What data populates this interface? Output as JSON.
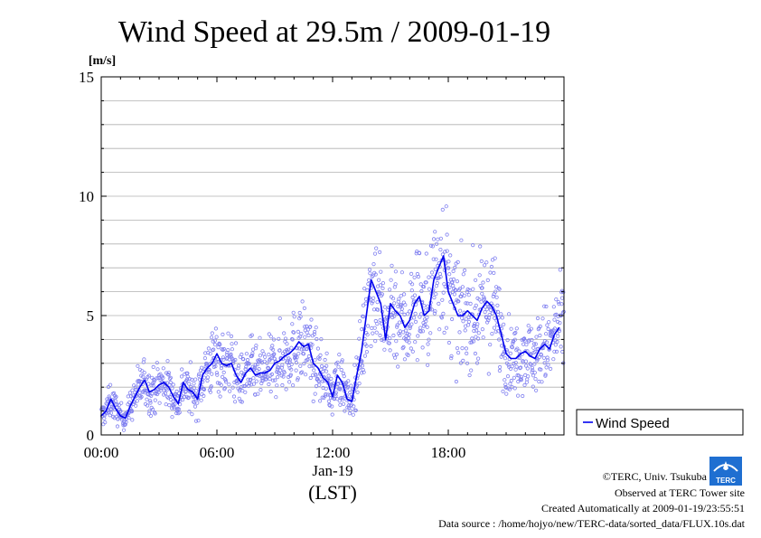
{
  "chart_data": {
    "type": "scatter",
    "title": "Wind Speed at 29.5m / 2009-01-19",
    "ylabel": "[m/s]",
    "xlabel": "(LST)",
    "date_label": "Jan-19",
    "ylim": [
      0,
      15
    ],
    "xlim_hours": [
      0,
      24
    ],
    "yticks": [
      0,
      5,
      10,
      15
    ],
    "ygrid": [
      1,
      2,
      3,
      4,
      5,
      6,
      7,
      8,
      9,
      10,
      11,
      12,
      13,
      14,
      15
    ],
    "xticks": [
      {
        "hour": 0,
        "label": "00:00"
      },
      {
        "hour": 6,
        "label": "06:00"
      },
      {
        "hour": 12,
        "label": "12:00"
      },
      {
        "hour": 18,
        "label": "18:00"
      }
    ],
    "grid": true,
    "legend_position": "right-bottom-outside",
    "series": [
      {
        "name": "Wind Speed",
        "color": "#0000ee",
        "scatter_color": "#8080f0",
        "line_hours": [
          0.0,
          0.25,
          0.5,
          0.75,
          1.0,
          1.25,
          1.5,
          1.75,
          2.0,
          2.25,
          2.5,
          2.75,
          3.0,
          3.25,
          3.5,
          3.75,
          4.0,
          4.25,
          4.5,
          4.75,
          5.0,
          5.25,
          5.5,
          5.75,
          6.0,
          6.25,
          6.5,
          6.75,
          7.0,
          7.25,
          7.5,
          7.75,
          8.0,
          8.25,
          8.5,
          8.75,
          9.0,
          9.25,
          9.5,
          9.75,
          10.0,
          10.25,
          10.5,
          10.75,
          11.0,
          11.25,
          11.5,
          11.75,
          12.0,
          12.25,
          12.5,
          12.75,
          13.0,
          13.25,
          13.5,
          13.75,
          14.0,
          14.25,
          14.5,
          14.75,
          15.0,
          15.25,
          15.5,
          15.75,
          16.0,
          16.25,
          16.5,
          16.75,
          17.0,
          17.25,
          17.5,
          17.75,
          18.0,
          18.25,
          18.5,
          18.75,
          19.0,
          19.25,
          19.5,
          19.75,
          20.0,
          20.25,
          20.5,
          20.75,
          21.0,
          21.25,
          21.5,
          21.75,
          22.0,
          22.25,
          22.5,
          22.75,
          23.0,
          23.25,
          23.5,
          23.75
        ],
        "line_values": [
          0.8,
          1.0,
          1.5,
          1.1,
          0.8,
          0.7,
          1.2,
          1.6,
          2.0,
          2.3,
          1.8,
          1.9,
          2.1,
          2.2,
          2.0,
          1.6,
          1.3,
          2.2,
          1.9,
          1.8,
          1.5,
          2.5,
          2.8,
          3.0,
          3.4,
          3.0,
          2.9,
          3.0,
          2.5,
          2.2,
          2.6,
          2.8,
          2.5,
          2.6,
          2.6,
          2.7,
          3.0,
          3.1,
          3.3,
          3.4,
          3.6,
          3.9,
          3.7,
          3.8,
          3.0,
          2.8,
          2.4,
          2.2,
          1.6,
          2.5,
          2.2,
          1.5,
          1.4,
          2.5,
          3.5,
          5.0,
          6.5,
          6.0,
          5.5,
          4.0,
          5.5,
          5.2,
          5.0,
          4.5,
          4.8,
          5.5,
          5.8,
          5.0,
          5.2,
          6.5,
          7.0,
          7.5,
          6.0,
          5.5,
          5.0,
          5.0,
          5.2,
          5.0,
          4.8,
          5.3,
          5.6,
          5.4,
          5.0,
          4.2,
          3.4,
          3.2,
          3.2,
          3.4,
          3.5,
          3.3,
          3.2,
          3.6,
          3.8,
          3.6,
          4.2,
          4.5
        ]
      }
    ]
  },
  "credits": {
    "copyright": "©TERC, Univ. Tsukuba",
    "observed": "Observed at TERC Tower site",
    "created": "Created Automatically at 2009-01-19/23:55:51",
    "source": "Data source : /home/hojyo/new/TERC-data/sorted_data/FLUX.10s.dat",
    "logo_text": "TERC"
  }
}
